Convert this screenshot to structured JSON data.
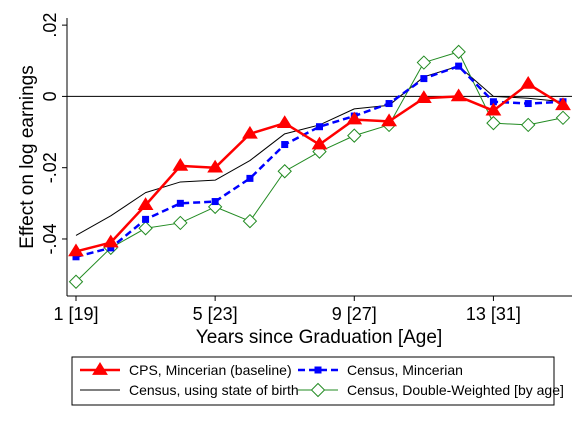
{
  "chart_data": {
    "type": "line",
    "xlabel": "Years since Graduation [Age]",
    "ylabel": "Effect on log earnings",
    "xlim": [
      1,
      15
    ],
    "ylim": [
      -0.056,
      0.022
    ],
    "x_ticks": [
      {
        "value": 1,
        "label": "1 [19]"
      },
      {
        "value": 5,
        "label": "5 [23]"
      },
      {
        "value": 9,
        "label": "9 [27]"
      },
      {
        "value": 13,
        "label": "13 [31]"
      }
    ],
    "y_ticks": [
      {
        "value": -0.04,
        "label": "-.04"
      },
      {
        "value": -0.02,
        "label": "-.02"
      },
      {
        "value": 0,
        "label": "0"
      },
      {
        "value": 0.02,
        "label": ".02"
      }
    ],
    "zero_line": true,
    "legend_position": "bottom",
    "x": [
      1,
      2,
      3,
      4,
      5,
      6,
      7,
      8,
      9,
      10,
      11,
      12,
      13,
      14,
      15
    ],
    "series": [
      {
        "name": "CPS, Mincerian (baseline)",
        "color": "#ff0000",
        "line": "solid",
        "marker": "triangle",
        "values": [
          -0.0435,
          -0.041,
          -0.0305,
          -0.0195,
          -0.02,
          -0.0105,
          -0.0075,
          -0.0135,
          -0.0065,
          -0.007,
          -0.0005,
          0.0,
          -0.004,
          0.0035,
          -0.0025
        ]
      },
      {
        "name": "Census, Mincerian",
        "color": "#0000ff",
        "line": "dashed",
        "marker": "square",
        "values": [
          -0.045,
          -0.0425,
          -0.0345,
          -0.03,
          -0.0295,
          -0.023,
          -0.0135,
          -0.0085,
          -0.0055,
          -0.002,
          0.005,
          0.0085,
          -0.0015,
          -0.002,
          -0.0015
        ]
      },
      {
        "name": "Census, using state of birth",
        "color": "#000000",
        "line": "thin",
        "marker": "none",
        "values": [
          -0.039,
          -0.0335,
          -0.027,
          -0.024,
          -0.0235,
          -0.018,
          -0.0105,
          -0.008,
          -0.0035,
          -0.0025,
          0.0055,
          0.0085,
          0.0,
          -0.0005,
          -0.0015
        ]
      },
      {
        "name": "Census, Double-Weighted [by age]",
        "color": "#228b22",
        "line": "thin",
        "marker": "diamond",
        "values": [
          -0.052,
          -0.0425,
          -0.037,
          -0.0355,
          -0.031,
          -0.035,
          -0.021,
          -0.0155,
          -0.011,
          -0.008,
          0.0095,
          0.0125,
          -0.0075,
          -0.008,
          -0.006
        ]
      }
    ]
  }
}
